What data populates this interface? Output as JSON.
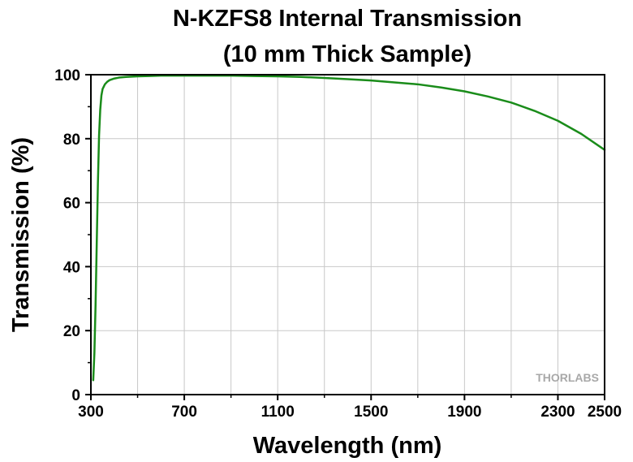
{
  "chart_data": {
    "type": "line",
    "title": "N-KZFS8 Internal Transmission",
    "subtitle": "(10 mm Thick Sample)",
    "xlabel": "Wavelength (nm)",
    "ylabel": "Transmission (%)",
    "xlim": [
      300,
      2500
    ],
    "ylim": [
      0,
      100
    ],
    "x_ticks": [
      300,
      700,
      1100,
      1500,
      1900,
      2300,
      2500
    ],
    "x_tick_labels": [
      "300",
      "700",
      "1100",
      "1500",
      "1900",
      "2300",
      "2500"
    ],
    "x_minor_ticks": [
      500,
      900,
      1300,
      1700,
      2100
    ],
    "y_ticks": [
      0,
      20,
      40,
      60,
      80,
      100
    ],
    "y_tick_labels": [
      "0",
      "20",
      "40",
      "60",
      "80",
      "100"
    ],
    "y_minor_ticks": [
      10,
      30,
      50,
      70,
      90
    ],
    "grid": true,
    "legend": "none",
    "series": [
      {
        "color": "#1a8c1a",
        "x": [
          310,
          315,
          320,
          325,
          330,
          335,
          340,
          345,
          350,
          360,
          370,
          380,
          400,
          420,
          450,
          500,
          550,
          600,
          700,
          800,
          900,
          1000,
          1100,
          1200,
          1300,
          1400,
          1500,
          1600,
          1700,
          1800,
          1900,
          2000,
          2100,
          2200,
          2300,
          2400,
          2500
        ],
        "y": [
          4.5,
          13,
          28,
          47,
          66,
          81,
          89,
          93.5,
          95.5,
          97,
          97.8,
          98.3,
          98.8,
          99.1,
          99.3,
          99.5,
          99.6,
          99.7,
          99.7,
          99.7,
          99.7,
          99.6,
          99.5,
          99.3,
          99.0,
          98.6,
          98.2,
          97.6,
          97.0,
          96.0,
          94.8,
          93.2,
          91.3,
          88.7,
          85.6,
          81.5,
          76.5
        ]
      }
    ]
  },
  "watermark": {
    "text": "THORLABS"
  }
}
